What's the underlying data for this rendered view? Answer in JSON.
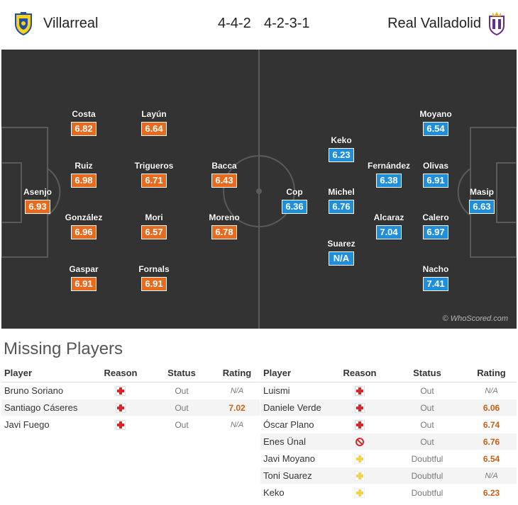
{
  "header": {
    "home_team": "Villarreal",
    "away_team": "Real Valladolid",
    "home_formation": "4-4-2",
    "away_formation": "4-2-3-1",
    "home_crest_icon": "villarreal-crest-icon",
    "away_crest_icon": "valladolid-crest-icon"
  },
  "colors": {
    "pitch": "#333333",
    "home_rating": "#e9691d",
    "away_rating": "#1f8fdc",
    "injury_red": "#d9262a",
    "doubtful_yellow": "#f3d34a"
  },
  "pitch": {
    "watermark": "© WhoScored.com",
    "home_players": [
      {
        "name": "Asenjo",
        "rating": "6.93"
      },
      {
        "name": "Costa",
        "rating": "6.82"
      },
      {
        "name": "Ruiz",
        "rating": "6.98"
      },
      {
        "name": "González",
        "rating": "6.96"
      },
      {
        "name": "Gaspar",
        "rating": "6.91"
      },
      {
        "name": "Layún",
        "rating": "6.64"
      },
      {
        "name": "Trigueros",
        "rating": "6.71"
      },
      {
        "name": "Mori",
        "rating": "6.57"
      },
      {
        "name": "Fornals",
        "rating": "6.91"
      },
      {
        "name": "Bacca",
        "rating": "6.43"
      },
      {
        "name": "Moreno",
        "rating": "6.78"
      }
    ],
    "away_players": [
      {
        "name": "Masip",
        "rating": "6.63"
      },
      {
        "name": "Moyano",
        "rating": "6.54"
      },
      {
        "name": "Olivas",
        "rating": "6.91"
      },
      {
        "name": "Calero",
        "rating": "6.97"
      },
      {
        "name": "Nacho",
        "rating": "7.41"
      },
      {
        "name": "Fernández",
        "rating": "6.38"
      },
      {
        "name": "Alcaraz",
        "rating": "7.04"
      },
      {
        "name": "Keko",
        "rating": "6.23"
      },
      {
        "name": "Michel",
        "rating": "6.76"
      },
      {
        "name": "Suarez",
        "rating": "N/A"
      },
      {
        "name": "Cop",
        "rating": "6.36"
      }
    ]
  },
  "missing": {
    "title": "Missing Players",
    "headers": {
      "player": "Player",
      "reason": "Reason",
      "status": "Status",
      "rating": "Rating"
    },
    "home": [
      {
        "player": "Bruno Soriano",
        "reason_icon": "injury-icon",
        "status": "Out",
        "rating": "N/A"
      },
      {
        "player": "Santiago Cáseres",
        "reason_icon": "injury-icon",
        "status": "Out",
        "rating": "7.02"
      },
      {
        "player": "Javi Fuego",
        "reason_icon": "injury-icon",
        "status": "Out",
        "rating": "N/A"
      }
    ],
    "away": [
      {
        "player": "Luismi",
        "reason_icon": "injury-icon",
        "status": "Out",
        "rating": "N/A"
      },
      {
        "player": "Daniele Verde",
        "reason_icon": "injury-icon",
        "status": "Out",
        "rating": "6.06"
      },
      {
        "player": "Óscar Plano",
        "reason_icon": "injury-icon",
        "status": "Out",
        "rating": "6.74"
      },
      {
        "player": "Enes Ünal",
        "reason_icon": "suspended-icon",
        "status": "Out",
        "rating": "6.76"
      },
      {
        "player": "Javi Moyano",
        "reason_icon": "doubtful-icon",
        "status": "Doubtful",
        "rating": "6.54"
      },
      {
        "player": "Toni Suarez",
        "reason_icon": "doubtful-icon",
        "status": "Doubtful",
        "rating": "N/A"
      },
      {
        "player": "Keko",
        "reason_icon": "doubtful-icon",
        "status": "Doubtful",
        "rating": "6.23"
      }
    ]
  }
}
